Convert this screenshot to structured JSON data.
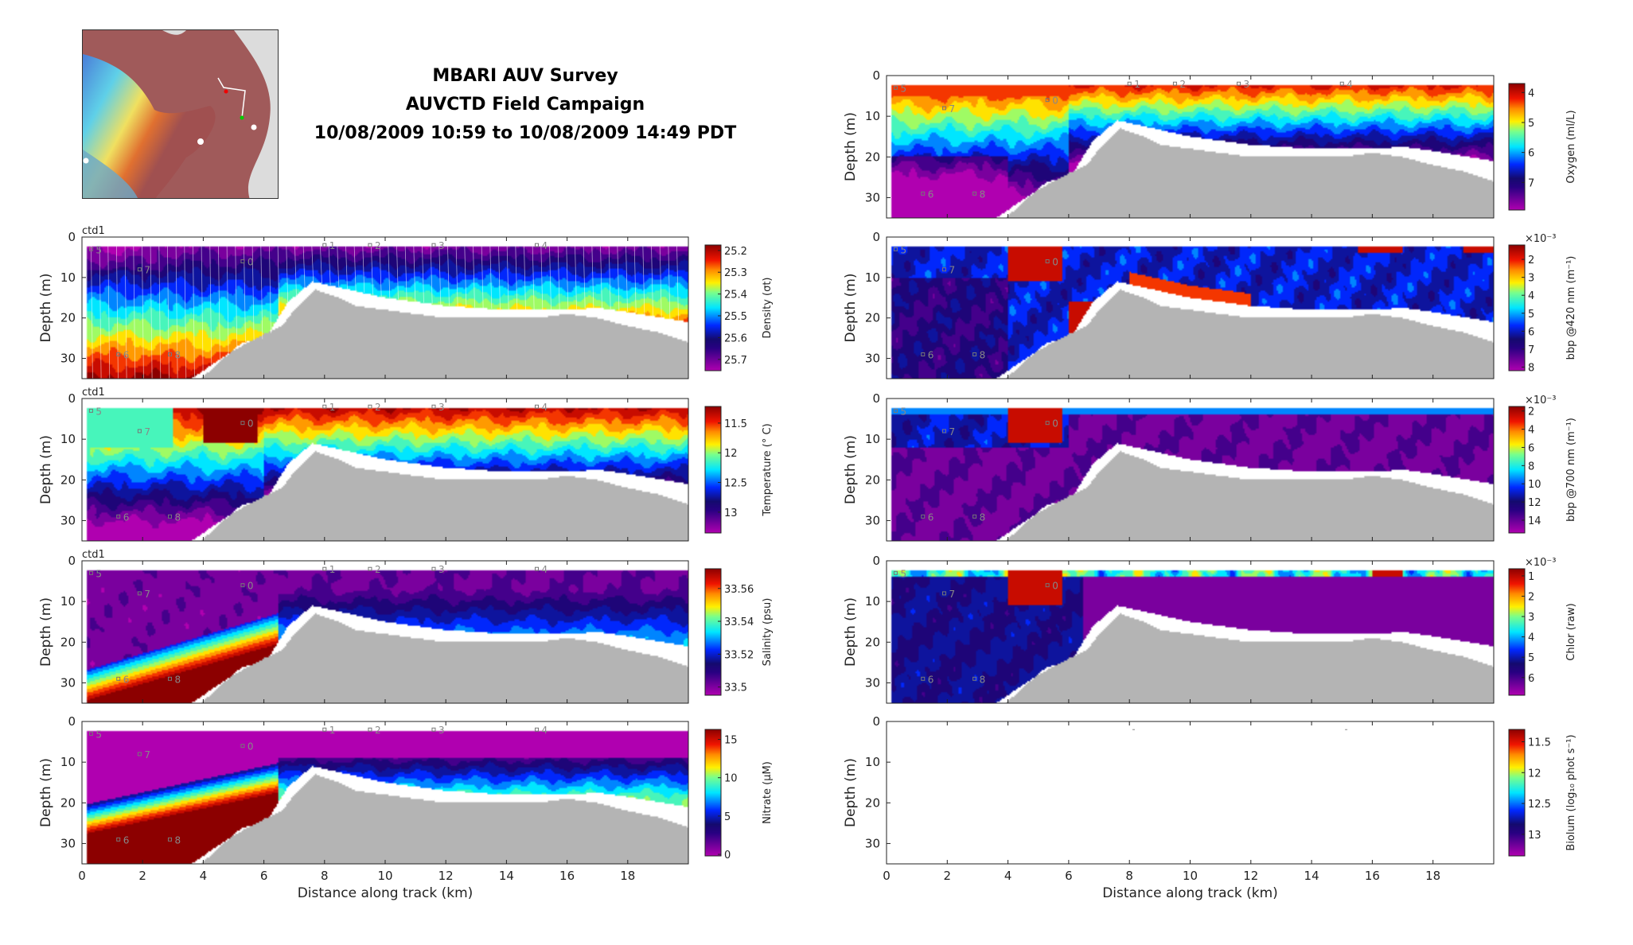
{
  "header": {
    "title_line1": "MBARI AUV Survey",
    "title_line2": "AUVCTD Field Campaign",
    "title_line3": "10/08/2009 10:59 to 10/08/2009 14:49 PDT"
  },
  "chart_data": {
    "type": "heatmap",
    "xlabel": "Distance along track (km)",
    "ylabel": "Depth (m)",
    "xlim": [
      0,
      20
    ],
    "ylim": [
      35,
      0
    ],
    "xticks": [
      0,
      2,
      4,
      6,
      8,
      10,
      12,
      14,
      16,
      18
    ],
    "yticks": [
      0,
      10,
      20,
      30
    ],
    "platform_label": "ctd1",
    "waypoints": [
      {
        "label": "5",
        "km": 0.3,
        "depth": 3
      },
      {
        "label": "7",
        "km": 1.9,
        "depth": 8
      },
      {
        "label": "6",
        "km": 1.2,
        "depth": 29
      },
      {
        "label": "8",
        "km": 2.9,
        "depth": 29
      },
      {
        "label": "0",
        "km": 5.3,
        "depth": 6
      },
      {
        "label": "1",
        "km": 8.0,
        "depth": 2
      },
      {
        "label": "2",
        "km": 9.5,
        "depth": 2
      },
      {
        "label": "3",
        "km": 11.6,
        "depth": 2
      },
      {
        "label": "4",
        "km": 15.0,
        "depth": 2
      }
    ],
    "panels": [
      {
        "id": "density",
        "column": "left",
        "label": "Density (σt)",
        "ticks": [
          25.2,
          25.3,
          25.4,
          25.5,
          25.6,
          25.7
        ],
        "range": [
          25.175,
          25.752
        ],
        "show_platform": true,
        "exponent": ""
      },
      {
        "id": "temperature",
        "column": "left",
        "label": "Temperature (° C)",
        "ticks": [
          11.5,
          12,
          12.5,
          13
        ],
        "range": [
          11.22,
          13.35
        ],
        "show_platform": true,
        "exponent": ""
      },
      {
        "id": "salinity",
        "column": "left",
        "label": "Salinity (psu)",
        "ticks": [
          33.5,
          33.52,
          33.54,
          33.56
        ],
        "range": [
          33.572,
          33.495
        ],
        "show_platform": true,
        "exponent": ""
      },
      {
        "id": "nitrate",
        "column": "left",
        "label": "Nitrate (μM)",
        "ticks": [
          0,
          5,
          10,
          15
        ],
        "range": [
          16.3,
          -0.2
        ],
        "show_platform": false,
        "exponent": ""
      },
      {
        "id": "oxygen",
        "column": "right",
        "label": "Oxygen (ml/L)",
        "ticks": [
          4,
          5,
          6,
          7
        ],
        "range": [
          3.7,
          7.92
        ],
        "show_platform": false,
        "exponent": ""
      },
      {
        "id": "bbp420",
        "column": "right",
        "label": "bbp @420 nm (m⁻¹)",
        "ticks": [
          2,
          3,
          4,
          5,
          6,
          7,
          8
        ],
        "range": [
          1.2,
          8.2
        ],
        "show_platform": false,
        "exponent": "×10⁻³"
      },
      {
        "id": "bbp700",
        "column": "right",
        "label": "bbp @700 nm (m⁻¹)",
        "ticks": [
          2,
          4,
          6,
          8,
          10,
          12,
          14
        ],
        "range": [
          1.5,
          15.4
        ],
        "show_platform": false,
        "exponent": "×10⁻³"
      },
      {
        "id": "chlor",
        "column": "right",
        "label": "Chlor (raw)",
        "ticks": [
          1,
          2,
          3,
          4,
          5,
          6
        ],
        "range": [
          0.65,
          6.87
        ],
        "show_platform": false,
        "exponent": "×10⁻³"
      },
      {
        "id": "biolum",
        "column": "right",
        "label": "Biolum (log₁₀ phot s⁻¹)",
        "ticks": [
          11.5,
          12,
          12.5,
          13
        ],
        "range": [
          11.3,
          13.35
        ],
        "show_platform": false,
        "exponent": ""
      }
    ]
  }
}
